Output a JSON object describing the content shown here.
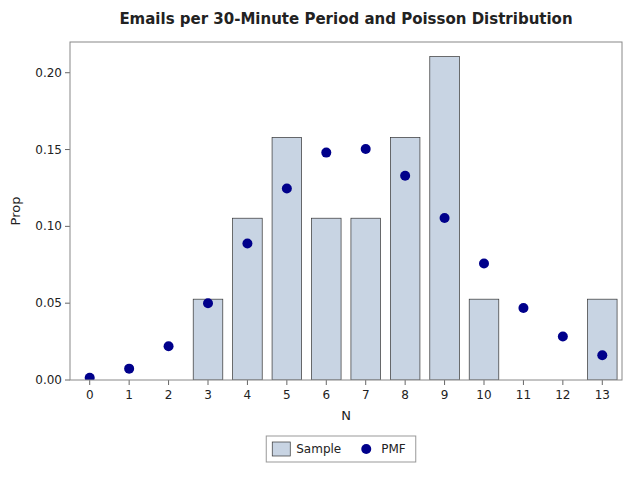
{
  "chart_data": {
    "type": "bar",
    "title": "Emails per 30-Minute Period and Poisson Distribution",
    "xlabel": "N",
    "ylabel": "Prop",
    "categories": [
      0,
      1,
      2,
      3,
      4,
      5,
      6,
      7,
      8,
      9,
      10,
      11,
      12,
      13
    ],
    "series": [
      {
        "name": "Sample",
        "type": "bar",
        "color": "#C8D4E3",
        "values": [
          0.0,
          0.0,
          0.0,
          0.0526,
          0.1053,
          0.1579,
          0.1053,
          0.1053,
          0.1579,
          0.2105,
          0.0526,
          0.0,
          0.0,
          0.0526
        ]
      },
      {
        "name": "PMF",
        "type": "scatter",
        "color": "#00008B",
        "marker": "circle",
        "values": [
          0.0015,
          0.0074,
          0.022,
          0.05,
          0.0888,
          0.1247,
          0.148,
          0.1503,
          0.133,
          0.1055,
          0.0758,
          0.0469,
          0.0283,
          0.0161
        ]
      }
    ],
    "ylim": [
      0,
      0.22
    ],
    "yticks": [
      {
        "value": 0,
        "label": "0.00"
      },
      0.05,
      {
        "value": 0.1,
        "label": "0.10"
      },
      0.15,
      {
        "value": 0.2,
        "label": "0.20"
      }
    ],
    "grid": false,
    "legend": "bottom"
  }
}
